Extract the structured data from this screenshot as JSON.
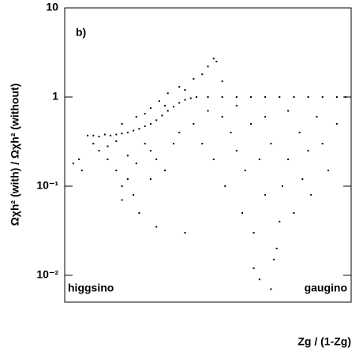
{
  "chart_data": {
    "type": "scatter",
    "annotation": "b)",
    "left_label": "higgsino",
    "right_label": "gaugino",
    "xlabel": "Zg / (1-Zg)",
    "ylabel": "Ωχh² (with) / Ωχh² (without)",
    "color": "#000000",
    "ylog": true,
    "xlim": [
      0,
      1
    ],
    "ylim": [
      0.005,
      10
    ],
    "yticks": [
      10,
      1,
      {
        "value": 0.1,
        "label": "10⁻¹"
      },
      {
        "value": 0.01,
        "label": "10⁻²"
      }
    ],
    "x": [
      0.08,
      0.1,
      0.12,
      0.14,
      0.16,
      0.18,
      0.2,
      0.22,
      0.24,
      0.26,
      0.28,
      0.3,
      0.32,
      0.34,
      0.36,
      0.38,
      0.4,
      0.42,
      0.44,
      0.46,
      0.5,
      0.55,
      0.6,
      0.65,
      0.7,
      0.75,
      0.8,
      0.85,
      0.9,
      0.95,
      0.98,
      0.2,
      0.25,
      0.3,
      0.33,
      0.36,
      0.4,
      0.45,
      0.5,
      0.52,
      0.53,
      0.48,
      0.55,
      0.42,
      0.28,
      0.35,
      0.1,
      0.12,
      0.15,
      0.18,
      0.2,
      0.22,
      0.24,
      0.15,
      0.18,
      0.22,
      0.25,
      0.28,
      0.3,
      0.32,
      0.35,
      0.38,
      0.4,
      0.26,
      0.2,
      0.3,
      0.05,
      0.03,
      0.06,
      0.32,
      0.42,
      0.45,
      0.48,
      0.5,
      0.52,
      0.55,
      0.56,
      0.58,
      0.6,
      0.6,
      0.62,
      0.63,
      0.65,
      0.66,
      0.68,
      0.7,
      0.7,
      0.72,
      0.73,
      0.75,
      0.76,
      0.78,
      0.78,
      0.8,
      0.82,
      0.83,
      0.85,
      0.86,
      0.88,
      0.9,
      0.92,
      0.95,
      0.68,
      0.72,
      0.66,
      0.74
    ],
    "values": [
      0.37,
      0.37,
      0.36,
      0.38,
      0.37,
      0.38,
      0.39,
      0.4,
      0.42,
      0.44,
      0.47,
      0.5,
      0.55,
      0.62,
      0.7,
      0.78,
      0.86,
      0.93,
      0.97,
      1,
      1,
      1,
      1,
      1,
      1,
      1,
      1,
      1,
      1,
      1,
      1,
      0.5,
      0.6,
      0.75,
      0.9,
      1.1,
      1.3,
      1.6,
      2.2,
      2.7,
      2.5,
      1.8,
      1.5,
      1.2,
      0.65,
      0.8,
      0.3,
      0.25,
      0.2,
      0.15,
      0.1,
      0.12,
      0.08,
      0.28,
      0.32,
      0.22,
      0.18,
      0.3,
      0.25,
      0.2,
      0.15,
      0.3,
      0.4,
      0.05,
      0.07,
      0.12,
      0.2,
      0.18,
      0.15,
      0.035,
      0.03,
      0.5,
      0.3,
      0.7,
      0.2,
      0.6,
      0.1,
      0.4,
      0.25,
      0.8,
      0.05,
      0.15,
      0.5,
      0.03,
      0.2,
      0.08,
      0.6,
      0.3,
      0.015,
      0.04,
      0.1,
      0.2,
      0.7,
      0.05,
      0.4,
      0.12,
      0.25,
      0.08,
      0.6,
      0.3,
      0.15,
      0.5,
      0.009,
      0.007,
      0.012,
      0.02
    ]
  }
}
